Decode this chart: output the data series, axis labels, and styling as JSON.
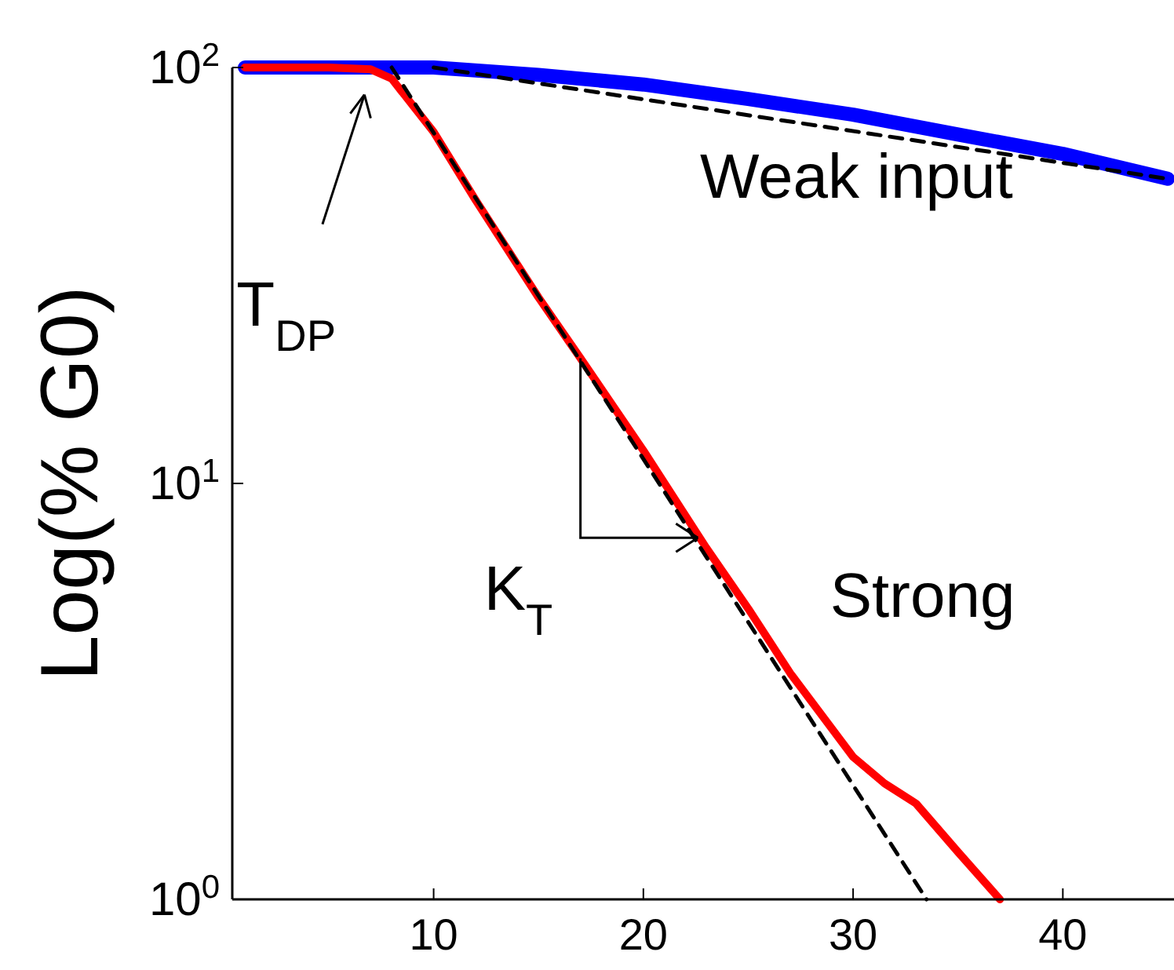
{
  "chart_data": {
    "type": "line",
    "ylabel": "Log(% G0)",
    "log": "y",
    "xlim": [
      0.4,
      45.3
    ],
    "xticks": [
      10,
      20,
      30,
      40
    ],
    "ylim": [
      1,
      100
    ],
    "yticks": [
      {
        "value": 1,
        "label": "10$^{0}$"
      },
      {
        "value": 10,
        "label": "10$^{1}$"
      },
      {
        "value": 100,
        "label": "10$^{2}$"
      }
    ],
    "grid": false,
    "series": [
      {
        "color": "#0000ff",
        "x": [
          1,
          5,
          10,
          15,
          20,
          25,
          30,
          35,
          40,
          45
        ],
        "values": [
          100,
          100,
          100,
          96,
          91,
          84,
          77,
          69,
          62,
          54
        ]
      },
      {
        "color": "#ff0000",
        "x": [
          1,
          5,
          7,
          8,
          10,
          12,
          15,
          17,
          20,
          23,
          25,
          27,
          30,
          31.5,
          33,
          35,
          37
        ],
        "values": [
          100,
          100,
          99,
          94,
          70,
          48,
          28,
          20,
          12,
          7,
          5,
          3.5,
          2.2,
          1.9,
          1.7,
          1.3,
          1.0
        ]
      },
      {
        "color": "#000000",
        "line_style": "dashed",
        "x": [
          10,
          45
        ],
        "values": [
          100,
          54
        ]
      },
      {
        "color": "#000000",
        "line_style": "dashed",
        "x": [
          8,
          33.5
        ],
        "values": [
          100,
          1
        ]
      }
    ],
    "annotations": [
      "Weak input",
      "Strong",
      "T$_{DP}$",
      "K$_{T}$"
    ]
  }
}
